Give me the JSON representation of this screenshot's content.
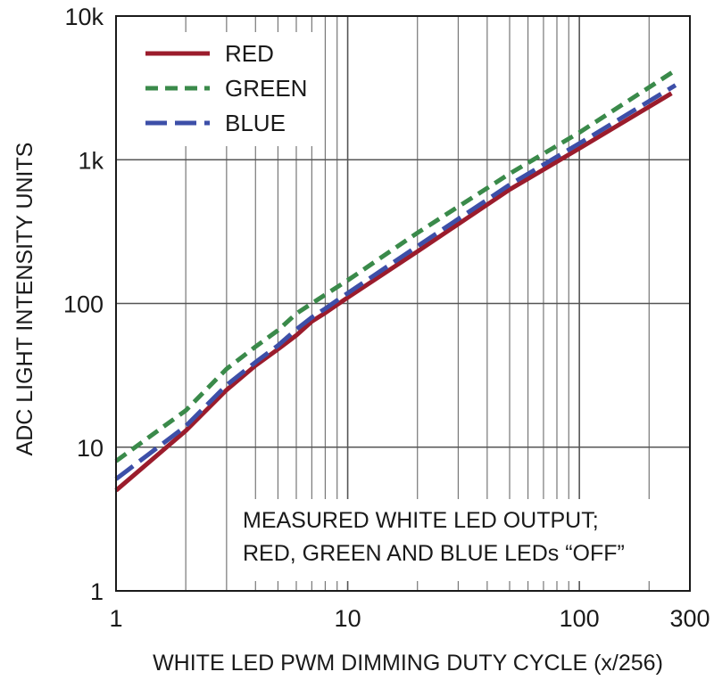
{
  "chart_data": {
    "type": "line",
    "title": "",
    "xlabel": "WHITE LED PWM DIMMING DUTY CYCLE (x/256)",
    "ylabel": "ADC LIGHT INTENSITY UNITS",
    "x_scale": "log",
    "y_scale": "log",
    "xlim": [
      1,
      300
    ],
    "ylim": [
      1,
      10000
    ],
    "x_ticks": [
      {
        "value": 1,
        "label": "1"
      },
      {
        "value": 10,
        "label": "10"
      },
      {
        "value": 100,
        "label": "100"
      },
      {
        "value": 300,
        "label": "300"
      }
    ],
    "y_ticks": [
      {
        "value": 1,
        "label": "1"
      },
      {
        "value": 10,
        "label": "10"
      },
      {
        "value": 100,
        "label": "100"
      },
      {
        "value": 1000,
        "label": "1k"
      },
      {
        "value": 10000,
        "label": "10k"
      }
    ],
    "grid": true,
    "legend_position": "top-left",
    "series": [
      {
        "name": "RED",
        "color": "#9b1c2c",
        "dash": "solid",
        "x": [
          1,
          2,
          3,
          4,
          5,
          6,
          7,
          8,
          10,
          20,
          50,
          100,
          250
        ],
        "y": [
          5,
          13,
          25,
          37,
          48,
          60,
          75,
          86,
          110,
          230,
          620,
          1200,
          2900
        ]
      },
      {
        "name": "GREEN",
        "color": "#3a8a4a",
        "dash": "short",
        "x": [
          1,
          2,
          3,
          4,
          5,
          6,
          7,
          8,
          10,
          20,
          50,
          100,
          260
        ],
        "y": [
          8,
          18,
          35,
          50,
          65,
          85,
          100,
          115,
          145,
          310,
          800,
          1550,
          4200
        ]
      },
      {
        "name": "BLUE",
        "color": "#3d4fa8",
        "dash": "long",
        "x": [
          1,
          2,
          3,
          4,
          5,
          6,
          7,
          8,
          10,
          20,
          50,
          100,
          260
        ],
        "y": [
          6,
          14,
          27,
          39,
          51,
          66,
          80,
          92,
          118,
          250,
          670,
          1300,
          3300
        ]
      }
    ],
    "annotation": {
      "lines": [
        "MEASURED WHITE LED OUTPUT;",
        "RED, GREEN AND BLUE LEDs “OFF”"
      ],
      "position": "bottom-right"
    }
  }
}
